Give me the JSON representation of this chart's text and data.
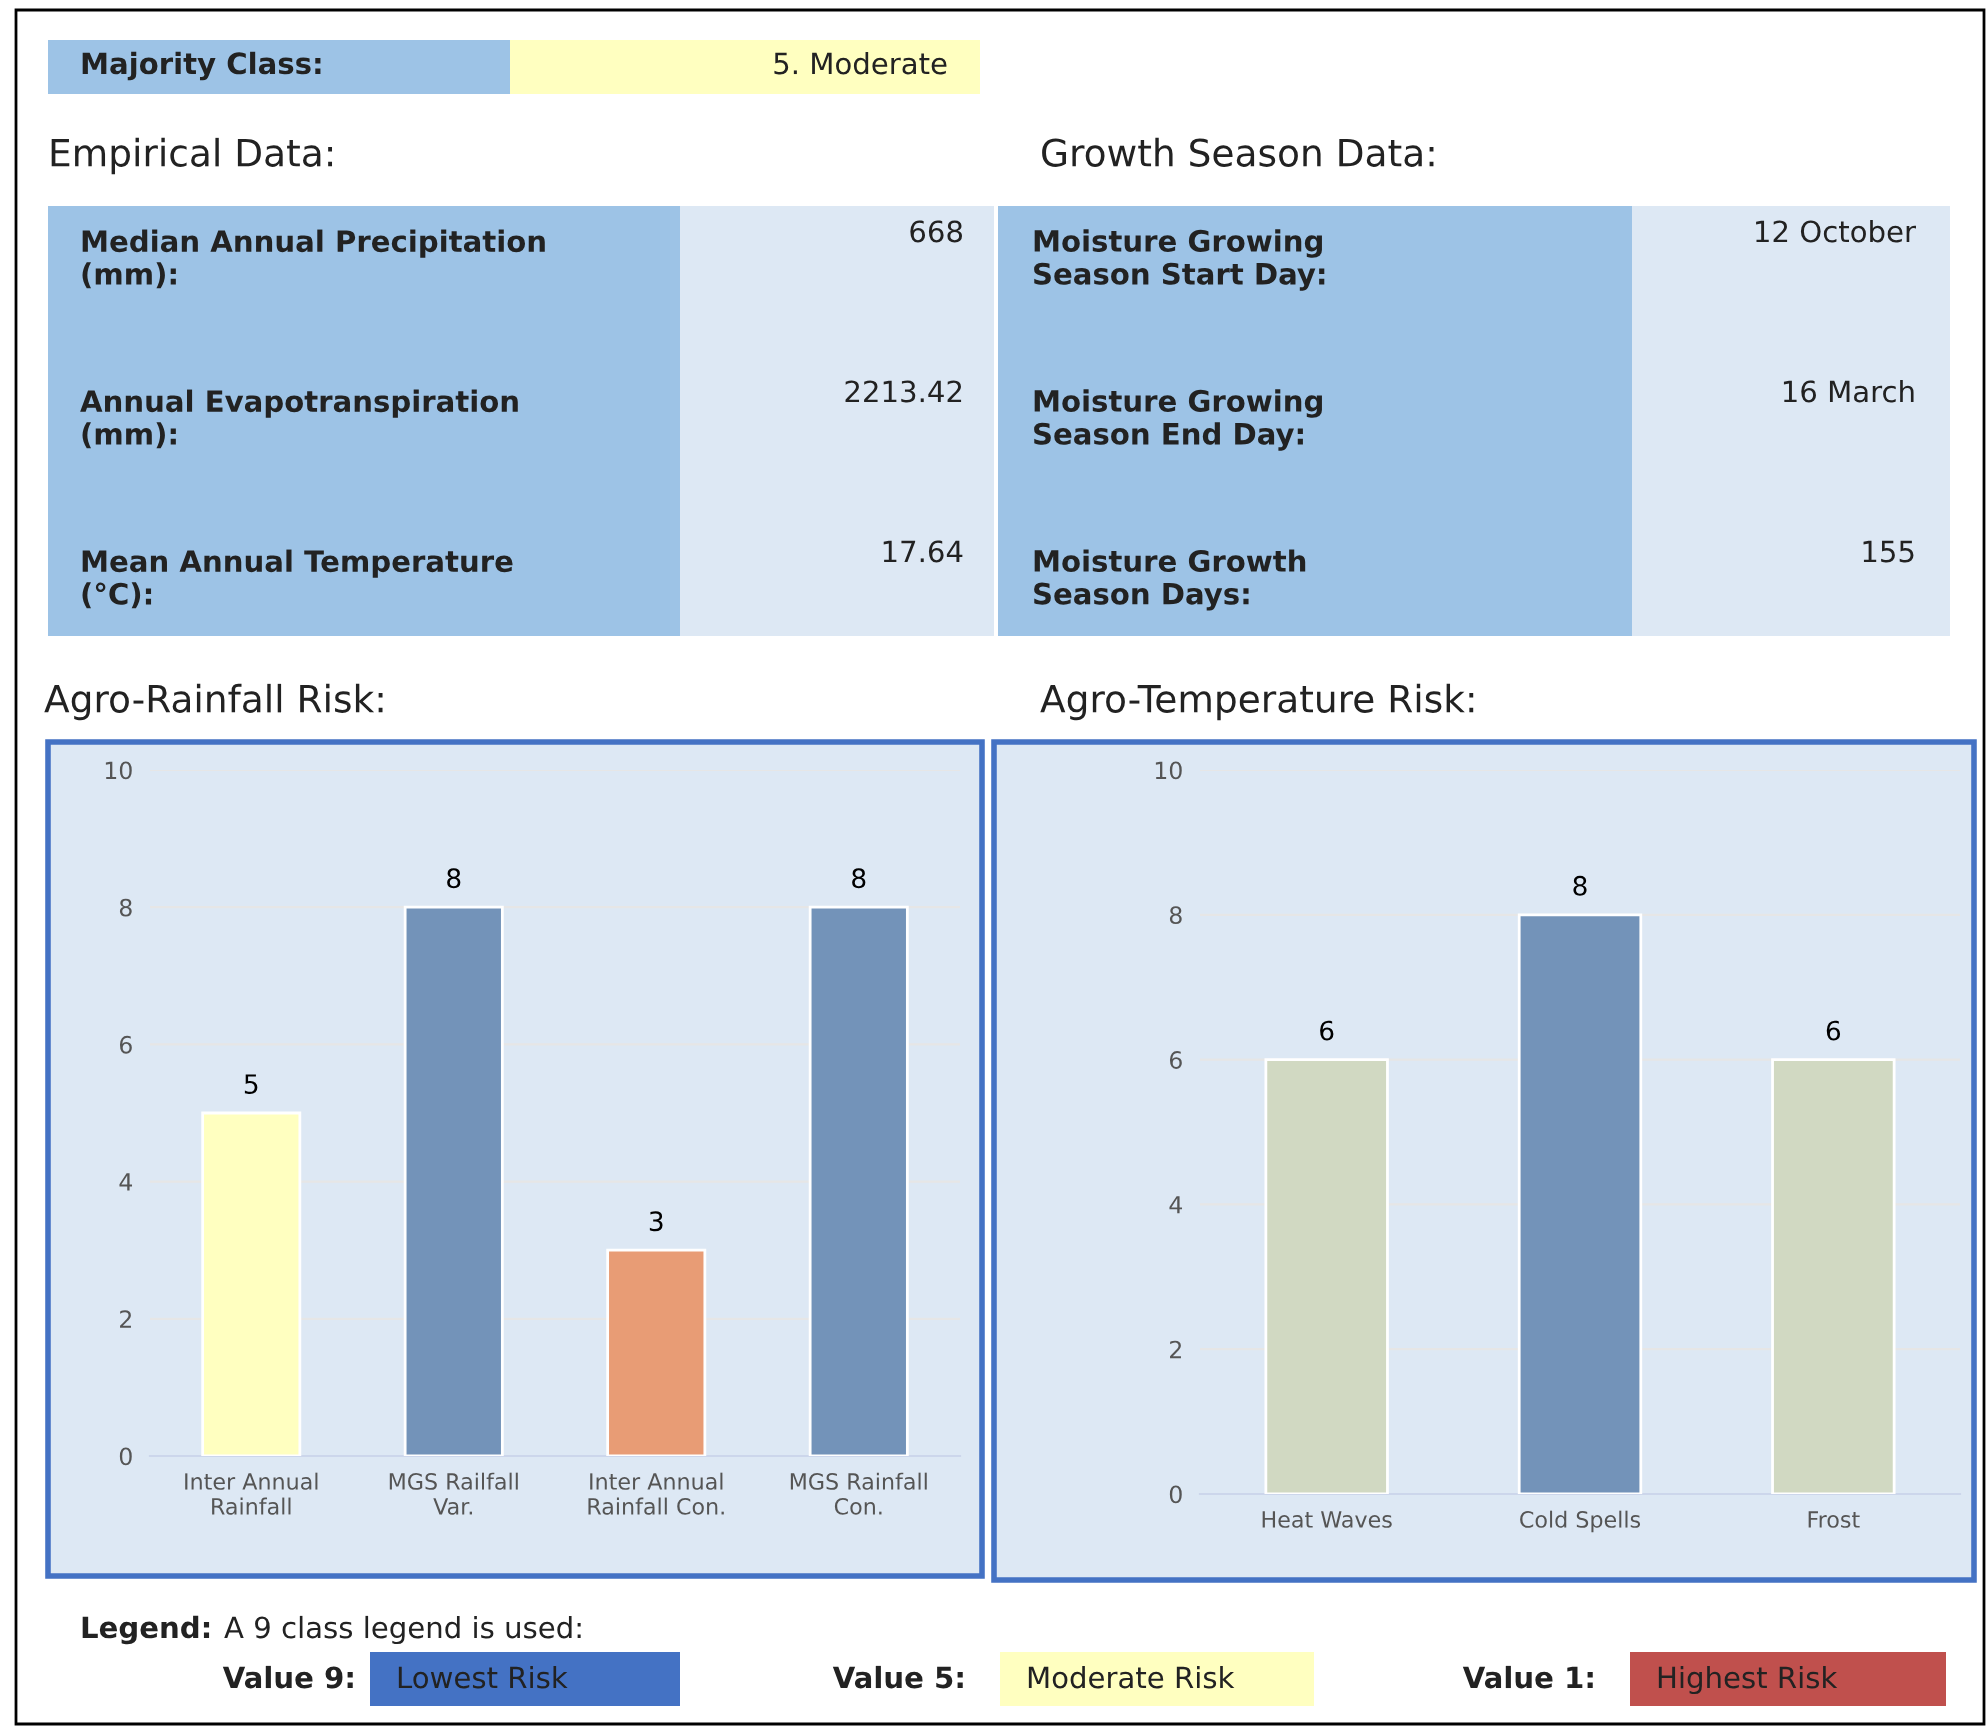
{
  "chart_data": [
    {
      "type": "other",
      "annotations": [
        "Majority Class:",
        "5. Moderate",
        "Empirical Data:",
        "Growth Season Data:",
        "Median Annual Precipitation\n(mm):",
        "668",
        "Annual Evapotranspiration\n(mm):",
        "2213.42",
        "Mean Annual Temperature\n(°C):",
        "17.64",
        "Moisture Growing\nSeason Start Day:",
        "12 October",
        "Moisture Growing\nSeason End Day:",
        "16 March",
        "Moisture Growth\nSeason Days:",
        "155"
      ]
    },
    {
      "type": "bar",
      "title": "Agro-Rainfall Risk:",
      "categories": [
        "Inter Annual\nRainfall",
        "MGS Railfall\nVar.",
        "Inter Annual\nRainfall Con.",
        "MGS Rainfall\nCon."
      ],
      "values": [
        5,
        8,
        3,
        8
      ],
      "colors": [
        "#ffffc0",
        "#7393b9",
        "#e89c75",
        "#7393b9"
      ],
      "ylim": [
        0,
        10
      ],
      "yticks": [
        0,
        2,
        4,
        6,
        8,
        10
      ],
      "grid": "y",
      "data_labels": true
    },
    {
      "type": "bar",
      "title": "Agro-Temperature Risk:",
      "categories": [
        "Heat Waves",
        "Cold Spells",
        "Frost"
      ],
      "values": [
        6,
        8,
        6
      ],
      "colors": [
        "#d1d9c2",
        "#7393b9",
        "#d1d9c2"
      ],
      "ylim": [
        0,
        10
      ],
      "yticks": [
        0,
        2,
        4,
        6,
        8,
        10
      ],
      "grid": "y",
      "data_labels": true
    },
    {
      "type": "other",
      "annotations": [
        "Legend:",
        "A 9 class legend is used:",
        "Value 9:",
        "Lowest Risk",
        "Value 5:",
        "Moderate Risk",
        "Value 1:",
        "Highest Risk"
      ],
      "colors": [
        "#4472c4",
        "#ffffc0",
        "#c0504d"
      ]
    }
  ]
}
